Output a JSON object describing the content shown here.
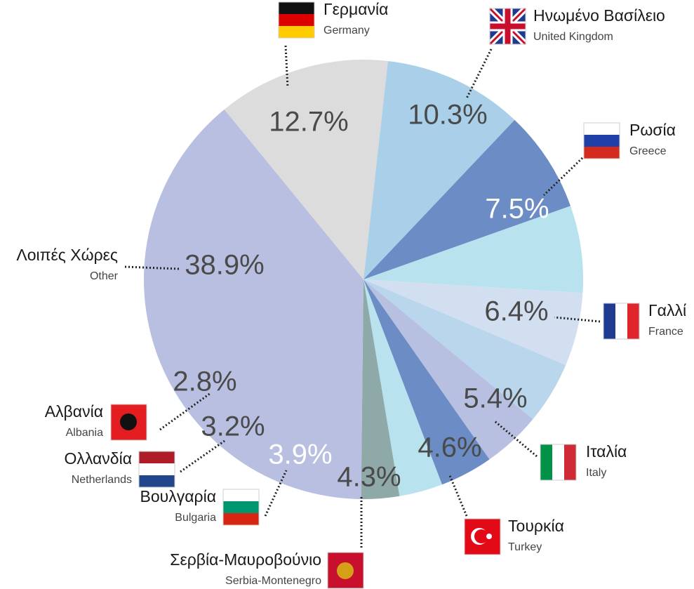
{
  "chart_data": {
    "type": "pie",
    "categories": [
      "Ηνωμένο Βασίλειο",
      "Ρωσία",
      "Γαλλί",
      "Ιταλία",
      "Τουρκία",
      "Σερβία-Μαυροβούνιο",
      "Βουλγαρία",
      "Ολλανδία",
      "Αλβανία",
      "Λοιπές Χώρες",
      "Γερμανία"
    ],
    "categories_en": [
      "United Kingdom",
      "Greece",
      "France",
      "Italy",
      "Turkey",
      "Serbia-Montenegro",
      "Bulgaria",
      "Netherlands",
      "Albania",
      "Other",
      "Germany"
    ],
    "values": [
      10.3,
      7.5,
      6.4,
      5.4,
      4.6,
      4.3,
      3.9,
      3.2,
      2.8,
      38.9,
      12.7
    ],
    "value_labels": [
      "10.3%",
      "7.5%",
      "6.4%",
      "5.4%",
      "4.6%",
      "4.3%",
      "3.9%",
      "3.2%",
      "2.8%",
      "38.9%",
      "12.7%"
    ],
    "colors": [
      "#a9cfe9",
      "#6b8cc4",
      "#b8e2ee",
      "#d2dff0",
      "#b9d6ec",
      "#b7c0e0",
      "#6b8cc4",
      "#b8e2ee",
      "#8fa8a8",
      "#b9bfe0",
      "#dcdcdc"
    ]
  }
}
